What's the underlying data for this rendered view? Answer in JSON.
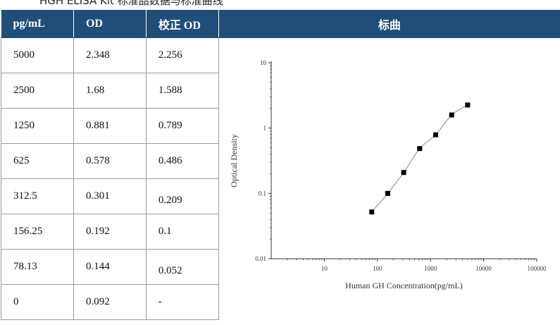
{
  "header_strip_text": "HGH ELISA Kit 标准品数据与标准曲线",
  "table": {
    "headers": [
      "pg/mL",
      "OD",
      "校正 OD"
    ],
    "rows": [
      [
        "5000",
        "2.348",
        "2.256"
      ],
      [
        "2500",
        "1.68",
        "1.588"
      ],
      [
        "1250",
        "0.881",
        "0.789"
      ],
      [
        "625",
        "0.578",
        "0.486"
      ],
      [
        "312.5",
        "0.301",
        "0.209"
      ],
      [
        "156.25",
        "0.192",
        "0.1"
      ],
      [
        "78.13",
        "0.144",
        "0.052"
      ],
      [
        "0",
        "0.092",
        "-"
      ]
    ]
  },
  "chart_header": "标曲",
  "chart_data": {
    "type": "line",
    "x_scale": "log",
    "y_scale": "log",
    "xlim": [
      1,
      100000
    ],
    "ylim": [
      0.01,
      10
    ],
    "x_ticks": [
      "10",
      "100",
      "1000",
      "10000",
      "100000"
    ],
    "y_ticks": [
      "0.01",
      "0.1",
      "1",
      "10"
    ],
    "xlabel": "Human GH Concentration(pg/mL)",
    "ylabel": "Optical Density",
    "grid": false,
    "marker": "square",
    "colors": {
      "line": "#888888",
      "marker": "#000000"
    },
    "series": [
      {
        "x": [
          78.13,
          156.25,
          312.5,
          625,
          1250,
          2500,
          5000
        ],
        "y": [
          0.052,
          0.1,
          0.209,
          0.486,
          0.789,
          1.588,
          2.256
        ]
      }
    ]
  }
}
